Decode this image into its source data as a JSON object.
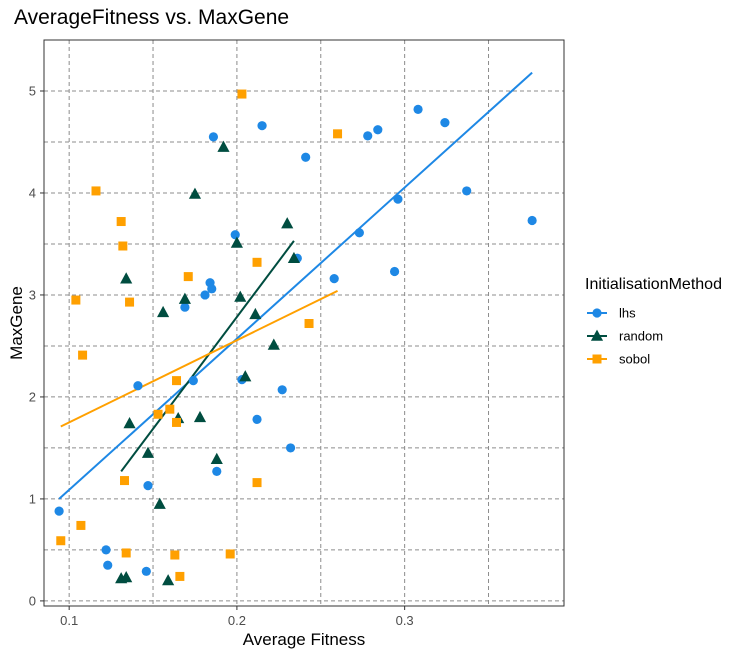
{
  "chart_data": {
    "type": "scatter",
    "title": "AverageFitness vs. MaxGene",
    "xlabel": "Average Fitness",
    "ylabel": "MaxGene",
    "xlim": [
      0.085,
      0.395
    ],
    "ylim": [
      -0.05,
      5.5
    ],
    "x_ticks": [
      0.1,
      0.2,
      0.3
    ],
    "x_tick_labels": [
      "0.1",
      "0.2",
      "0.3"
    ],
    "y_ticks": [
      0,
      1,
      2,
      3,
      4,
      5
    ],
    "y_tick_labels": [
      "0",
      "1",
      "2",
      "3",
      "4",
      "5"
    ],
    "grid": true,
    "grid_style": "dashed",
    "legend": {
      "title": "InitialisationMethod",
      "position": "right"
    },
    "series": [
      {
        "name": "lhs",
        "color": "#1e88e5",
        "marker": "circle",
        "points": [
          [
            0.094,
            0.88
          ],
          [
            0.122,
            0.5
          ],
          [
            0.123,
            0.35
          ],
          [
            0.141,
            2.11
          ],
          [
            0.146,
            0.29
          ],
          [
            0.147,
            1.13
          ],
          [
            0.169,
            2.88
          ],
          [
            0.174,
            2.16
          ],
          [
            0.181,
            3.0
          ],
          [
            0.184,
            3.12
          ],
          [
            0.185,
            3.06
          ],
          [
            0.186,
            4.55
          ],
          [
            0.188,
            1.27
          ],
          [
            0.199,
            3.59
          ],
          [
            0.203,
            2.17
          ],
          [
            0.212,
            1.78
          ],
          [
            0.215,
            4.66
          ],
          [
            0.227,
            2.07
          ],
          [
            0.232,
            1.5
          ],
          [
            0.236,
            3.36
          ],
          [
            0.241,
            4.35
          ],
          [
            0.258,
            3.16
          ],
          [
            0.273,
            3.61
          ],
          [
            0.278,
            4.56
          ],
          [
            0.284,
            4.62
          ],
          [
            0.294,
            3.23
          ],
          [
            0.296,
            3.94
          ],
          [
            0.308,
            4.82
          ],
          [
            0.324,
            4.69
          ],
          [
            0.337,
            4.02
          ],
          [
            0.376,
            3.73
          ]
        ],
        "trend": [
          [
            0.094,
            1.0
          ],
          [
            0.376,
            5.18
          ]
        ]
      },
      {
        "name": "random",
        "color": "#004d40",
        "marker": "triangle",
        "points": [
          [
            0.131,
            0.22
          ],
          [
            0.134,
            0.23
          ],
          [
            0.134,
            3.16
          ],
          [
            0.136,
            1.74
          ],
          [
            0.147,
            1.45
          ],
          [
            0.154,
            0.95
          ],
          [
            0.156,
            2.83
          ],
          [
            0.159,
            0.2
          ],
          [
            0.165,
            1.79
          ],
          [
            0.169,
            2.96
          ],
          [
            0.175,
            3.99
          ],
          [
            0.178,
            1.8
          ],
          [
            0.188,
            1.39
          ],
          [
            0.192,
            4.45
          ],
          [
            0.2,
            3.51
          ],
          [
            0.202,
            2.98
          ],
          [
            0.205,
            2.2
          ],
          [
            0.211,
            2.81
          ],
          [
            0.222,
            2.51
          ],
          [
            0.23,
            3.7
          ],
          [
            0.234,
            3.36
          ]
        ],
        "trend": [
          [
            0.131,
            1.27
          ],
          [
            0.234,
            3.53
          ]
        ]
      },
      {
        "name": "sobol",
        "color": "#ffa000",
        "marker": "square",
        "points": [
          [
            0.095,
            0.59
          ],
          [
            0.104,
            2.95
          ],
          [
            0.107,
            0.74
          ],
          [
            0.108,
            2.41
          ],
          [
            0.116,
            4.02
          ],
          [
            0.131,
            3.72
          ],
          [
            0.132,
            3.48
          ],
          [
            0.133,
            1.18
          ],
          [
            0.134,
            0.47
          ],
          [
            0.136,
            2.93
          ],
          [
            0.153,
            1.83
          ],
          [
            0.16,
            1.88
          ],
          [
            0.163,
            0.45
          ],
          [
            0.164,
            2.16
          ],
          [
            0.164,
            1.75
          ],
          [
            0.166,
            0.24
          ],
          [
            0.171,
            3.18
          ],
          [
            0.196,
            0.46
          ],
          [
            0.203,
            4.97
          ],
          [
            0.212,
            3.32
          ],
          [
            0.212,
            1.16
          ],
          [
            0.243,
            2.72
          ],
          [
            0.26,
            4.58
          ]
        ],
        "trend": [
          [
            0.095,
            1.71
          ],
          [
            0.26,
            3.04
          ]
        ]
      }
    ]
  }
}
